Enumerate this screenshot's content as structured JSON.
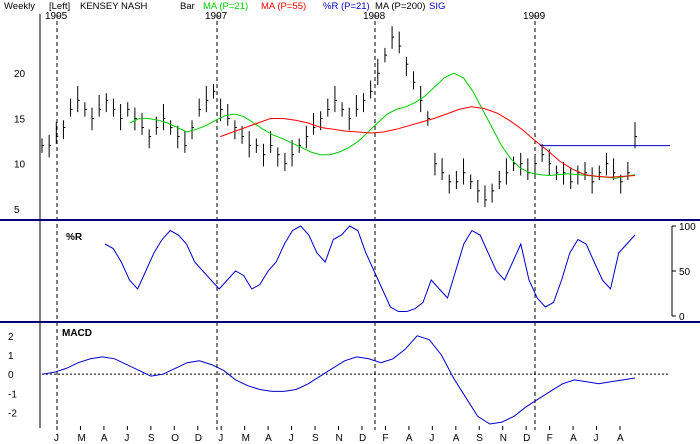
{
  "header": {
    "items": [
      {
        "text": "Weekly",
        "color": "#000000"
      },
      {
        "text": "[Left]",
        "color": "#000000"
      },
      {
        "text": "KENSEY NASH",
        "color": "#000000"
      },
      {
        "text": "Bar",
        "color": "#000000"
      },
      {
        "text": "MA (P=21)",
        "color": "#00cc00"
      },
      {
        "text": "MA (P=55)",
        "color": "#ff0000"
      },
      {
        "text": "%R (P=21)",
        "color": "#0000cc"
      },
      {
        "text": "MA (P=200)",
        "color": "#000000"
      },
      {
        "text": "SIG",
        "color": "#0000cc"
      }
    ]
  },
  "colors": {
    "price_bars": "#000000",
    "ma21": "#00cc00",
    "ma55": "#ff0000",
    "pctr": "#0000cc",
    "macd": "#0000cc",
    "separator": "#000080",
    "resistance": "#0000cc"
  },
  "chart_data": [
    {
      "type": "bar",
      "name": "price",
      "y_ticks": [
        5,
        10,
        15,
        20
      ],
      "ylim": [
        4,
        25
      ],
      "year_labels": [
        "1995",
        "1997",
        "1998",
        "1999"
      ],
      "x_month_labels": [
        "J",
        "M",
        "A",
        "J",
        "S",
        "O",
        "D",
        "J",
        "M",
        "A",
        "J",
        "S",
        "N",
        "D",
        "F",
        "A",
        "J",
        "A",
        "S",
        "N",
        "D",
        "F",
        "A",
        "J",
        "A"
      ],
      "weekly_close_samples": [
        12,
        12,
        13,
        14,
        16,
        17,
        16,
        15,
        16,
        17,
        16,
        15,
        16,
        15,
        14,
        13,
        14,
        15,
        14,
        13,
        12,
        14,
        16,
        17,
        18,
        16,
        15,
        14,
        13,
        12,
        12,
        11,
        12,
        11,
        10,
        11,
        12,
        13,
        14,
        15,
        16,
        17,
        16,
        15,
        16,
        17,
        18,
        20,
        22,
        24,
        23,
        21,
        19,
        17,
        15,
        10,
        9,
        8,
        8,
        9,
        8,
        7,
        6,
        7,
        8,
        9,
        10,
        10,
        9,
        10,
        11,
        10,
        9,
        9,
        8,
        9,
        9,
        8,
        9,
        10,
        9,
        8,
        9,
        13
      ],
      "ma21_samples": [
        null,
        null,
        null,
        null,
        null,
        14.5,
        15,
        15,
        14.8,
        14.5,
        14,
        13.5,
        13.8,
        14.2,
        14.8,
        15.3,
        15.5,
        15.2,
        14.5,
        13.8,
        13.2,
        12.8,
        12.3,
        11.8,
        11.3,
        11,
        11,
        11.3,
        11.8,
        12.5,
        13.5,
        14.5,
        15.5,
        16,
        16.3,
        16.8,
        17.5,
        18.5,
        19.5,
        20,
        19.5,
        18,
        16,
        14,
        12,
        10.5,
        9.5,
        9,
        8.8,
        8.7,
        8.8,
        8.9,
        8.8,
        8.7,
        8.6,
        8.5,
        8.4,
        8.6,
        8.8
      ],
      "ma55_samples": [
        null,
        null,
        null,
        null,
        null,
        null,
        null,
        null,
        null,
        null,
        null,
        13,
        13.5,
        14,
        14.5,
        15,
        15,
        14.8,
        14.5,
        14,
        13.8,
        13.6,
        13.5,
        13.4,
        13.5,
        13.8,
        14.2,
        14.6,
        15,
        15.5,
        16,
        16.3,
        16.1,
        15.6,
        14.8,
        13.8,
        12.6,
        11.5,
        10.3,
        9.4,
        8.8,
        8.6,
        8.5,
        8.6,
        8.7
      ],
      "resistance_level": 12
    },
    {
      "type": "line",
      "name": "%R",
      "y_ticks": [
        0,
        50,
        100
      ],
      "ylim": [
        0,
        100
      ],
      "values": [
        80,
        75,
        60,
        40,
        30,
        50,
        70,
        85,
        95,
        90,
        80,
        60,
        50,
        40,
        30,
        40,
        50,
        45,
        30,
        35,
        50,
        60,
        80,
        95,
        100,
        90,
        70,
        60,
        85,
        90,
        100,
        95,
        70,
        50,
        30,
        10,
        5,
        5,
        8,
        15,
        40,
        30,
        20,
        50,
        80,
        95,
        90,
        70,
        50,
        40,
        60,
        80,
        40,
        20,
        10,
        15,
        40,
        70,
        85,
        80,
        60,
        40,
        30,
        70,
        80,
        90
      ]
    },
    {
      "type": "line",
      "name": "MACD",
      "y_ticks": [
        -2,
        -1,
        0,
        1,
        2
      ],
      "ylim": [
        -2.6,
        2.2
      ],
      "values": [
        0,
        0.1,
        0.3,
        0.6,
        0.8,
        0.9,
        0.8,
        0.5,
        0.2,
        -0.1,
        0,
        0.3,
        0.6,
        0.7,
        0.5,
        0.2,
        -0.3,
        -0.6,
        -0.8,
        -0.9,
        -0.9,
        -0.8,
        -0.5,
        -0.1,
        0.3,
        0.7,
        0.9,
        0.8,
        0.6,
        0.8,
        1.3,
        2,
        1.8,
        1,
        -0.2,
        -1.2,
        -2.2,
        -2.6,
        -2.5,
        -2.2,
        -1.7,
        -1.3,
        -0.9,
        -0.5,
        -0.3,
        -0.4,
        -0.5,
        -0.4,
        -0.3,
        -0.2
      ]
    }
  ]
}
